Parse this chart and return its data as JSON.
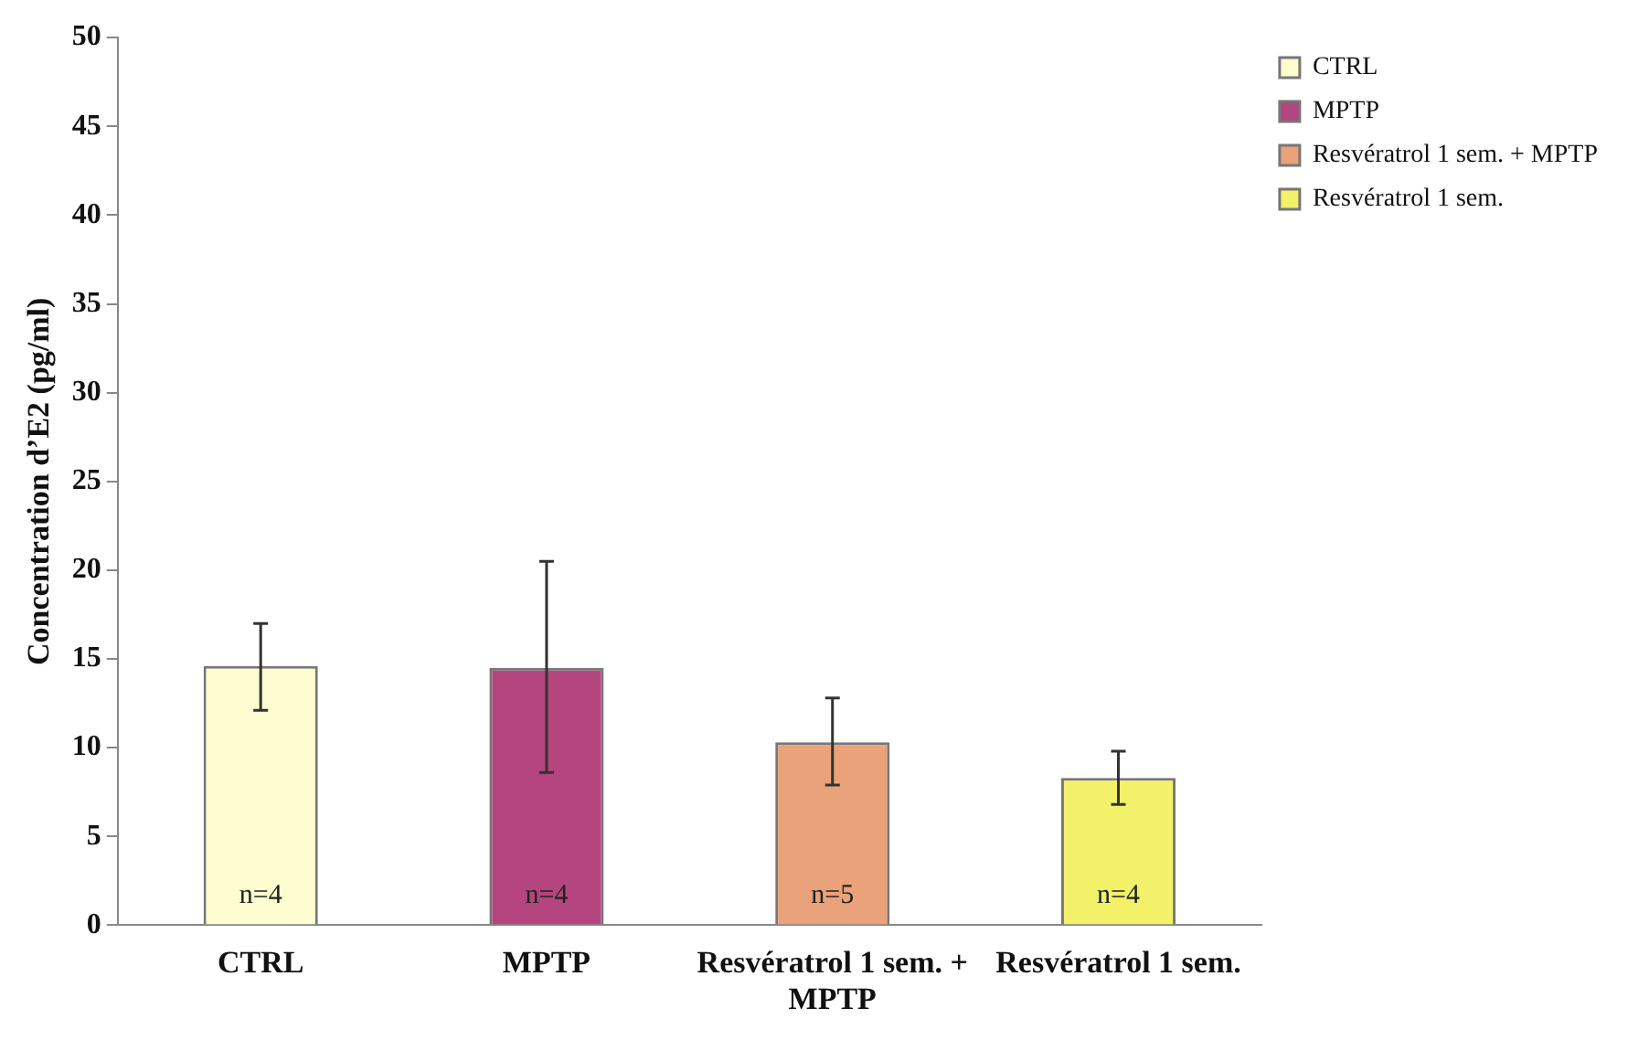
{
  "chart_data": {
    "type": "bar",
    "ylabel": "Concentration d’E2 (pg/ml)",
    "categories": [
      "CTRL",
      "MPTP",
      "Resvératrol 1 sem. + MPTP",
      "Resvératrol 1 sem."
    ],
    "series": [
      {
        "name": "CTRL",
        "color": "#fdfdd0",
        "values": [
          14.6,
          null,
          null,
          null
        ],
        "errors": [
          [
            12.1,
            17
          ],
          null,
          null,
          null
        ]
      },
      {
        "name": "MPTP",
        "color": "#b5457e",
        "values": [
          null,
          14.5,
          null,
          null
        ],
        "errors": [
          null,
          [
            8.6,
            20.5
          ],
          null,
          null
        ]
      },
      {
        "name": "Resvératrol 1 sem. + MPTP",
        "color": "#e9a27a",
        "values": [
          null,
          null,
          10.3,
          null
        ],
        "errors": [
          null,
          null,
          [
            7.9,
            12.8
          ],
          null
        ]
      },
      {
        "name": "Resvératrol 1 sem.",
        "color": "#f3f06a",
        "values": [
          null,
          null,
          null,
          8.3
        ],
        "errors": [
          null,
          null,
          null,
          [
            6.8,
            9.8
          ]
        ]
      }
    ],
    "ylim": [
      0,
      50
    ],
    "yticks": [
      0,
      5,
      10,
      15,
      20,
      25,
      30,
      35,
      40,
      45,
      50
    ],
    "grid": false,
    "legend": "top right",
    "annotations": [
      "n=4",
      "n=4",
      "n=5",
      "n=4"
    ]
  }
}
